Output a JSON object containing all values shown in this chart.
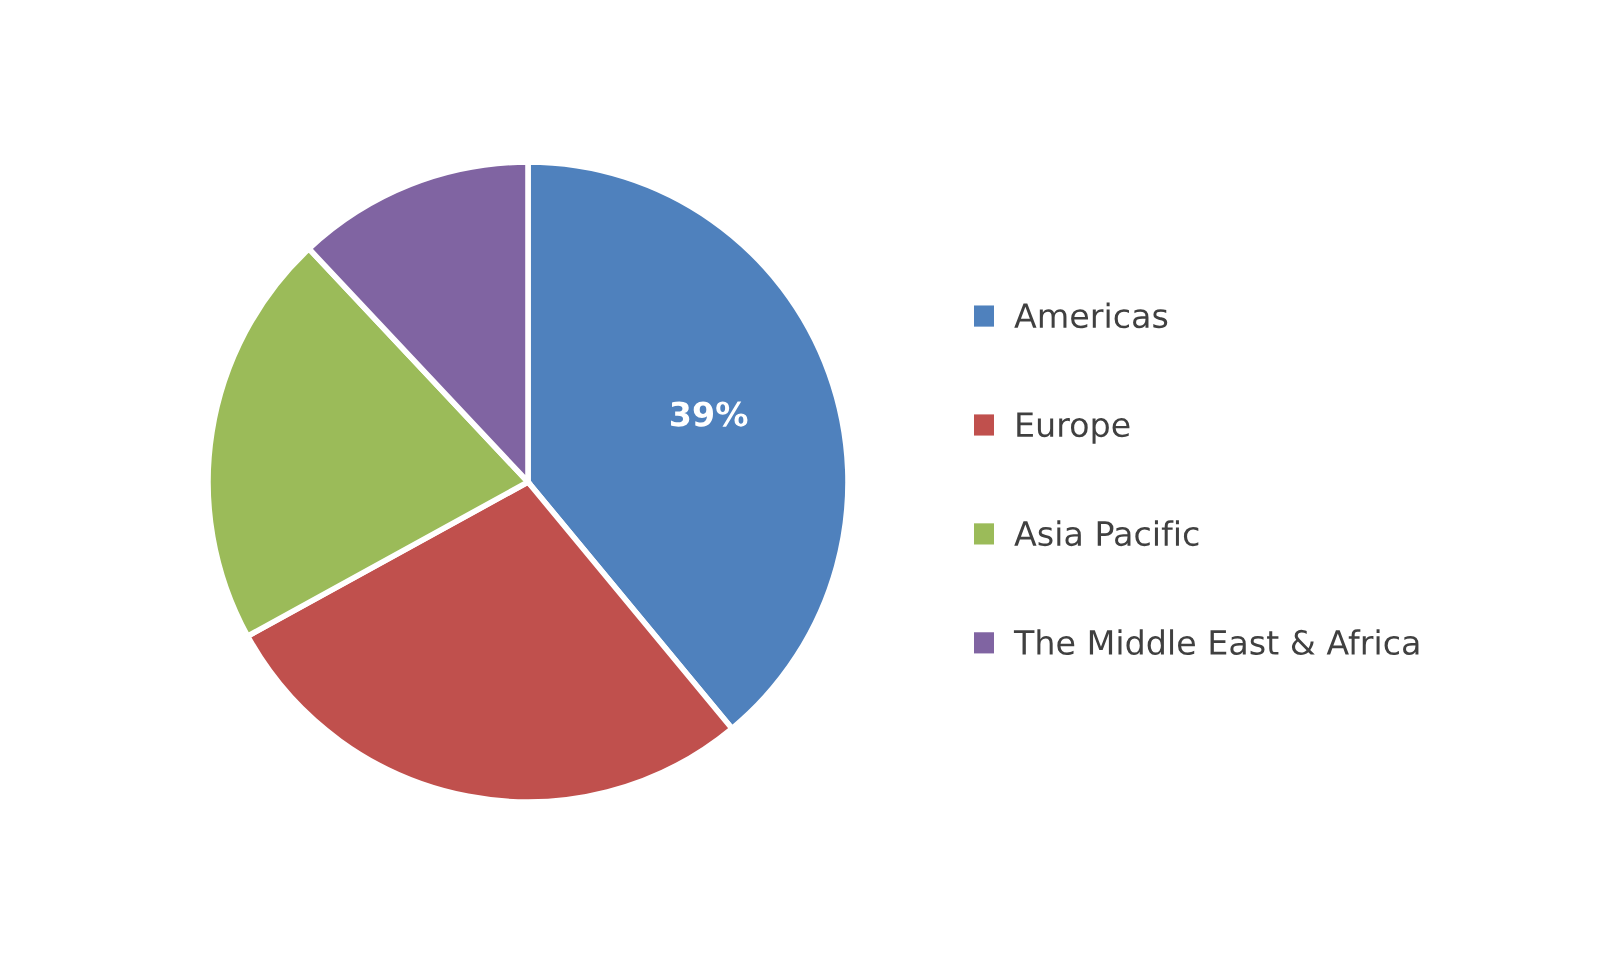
{
  "chart_data": {
    "type": "pie",
    "categories": [
      "Americas",
      "Europe",
      "Asia Pacific",
      "The Middle East & Africa"
    ],
    "values": [
      39,
      28,
      21,
      12
    ],
    "colors": [
      "#4f81bd",
      "#c0504d",
      "#9bbb59",
      "#8064a2"
    ],
    "value_labels": [
      "39%",
      null,
      null,
      null
    ],
    "legend": "right"
  }
}
